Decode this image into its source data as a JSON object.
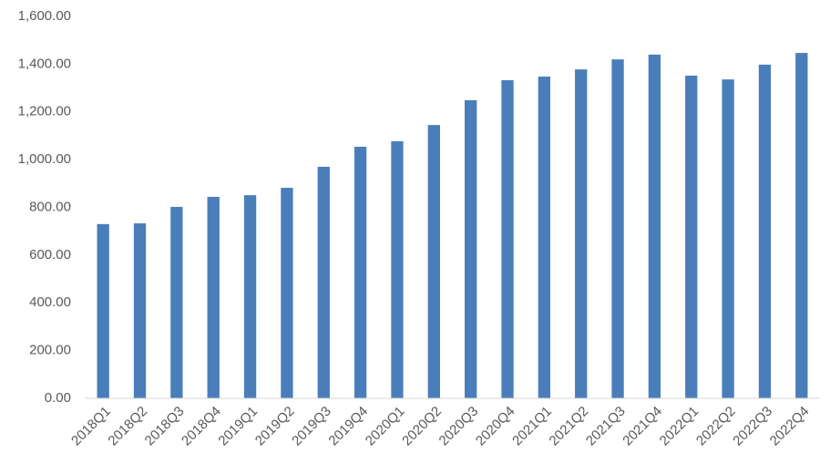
{
  "chart_data": {
    "type": "bar",
    "categories": [
      "2018Q1",
      "2018Q2",
      "2018Q3",
      "2018Q4",
      "2019Q1",
      "2019Q2",
      "2019Q3",
      "2019Q4",
      "2020Q1",
      "2020Q2",
      "2020Q3",
      "2020Q4",
      "2021Q1",
      "2021Q2",
      "2021Q3",
      "2021Q4",
      "2022Q1",
      "2022Q2",
      "2022Q3",
      "2022Q4"
    ],
    "values": [
      730,
      733,
      802,
      844,
      851,
      882,
      970,
      1054,
      1077,
      1145,
      1249,
      1333,
      1348,
      1378,
      1420,
      1440,
      1352,
      1336,
      1398,
      1447
    ],
    "color": "#4a7ebb",
    "ylim": [
      0,
      1600
    ],
    "yticks": [
      {
        "value": 0,
        "label": "0.00"
      },
      {
        "value": 200,
        "label": "200.00"
      },
      {
        "value": 400,
        "label": "400.00"
      },
      {
        "value": 600,
        "label": "600.00"
      },
      {
        "value": 800,
        "label": "800.00"
      },
      {
        "value": 1000,
        "label": "1,000.00"
      },
      {
        "value": 1200,
        "label": "1,200.00"
      },
      {
        "value": 1400,
        "label": "1,400.00"
      },
      {
        "value": 1600,
        "label": "1,600.00"
      }
    ],
    "grid": false
  }
}
